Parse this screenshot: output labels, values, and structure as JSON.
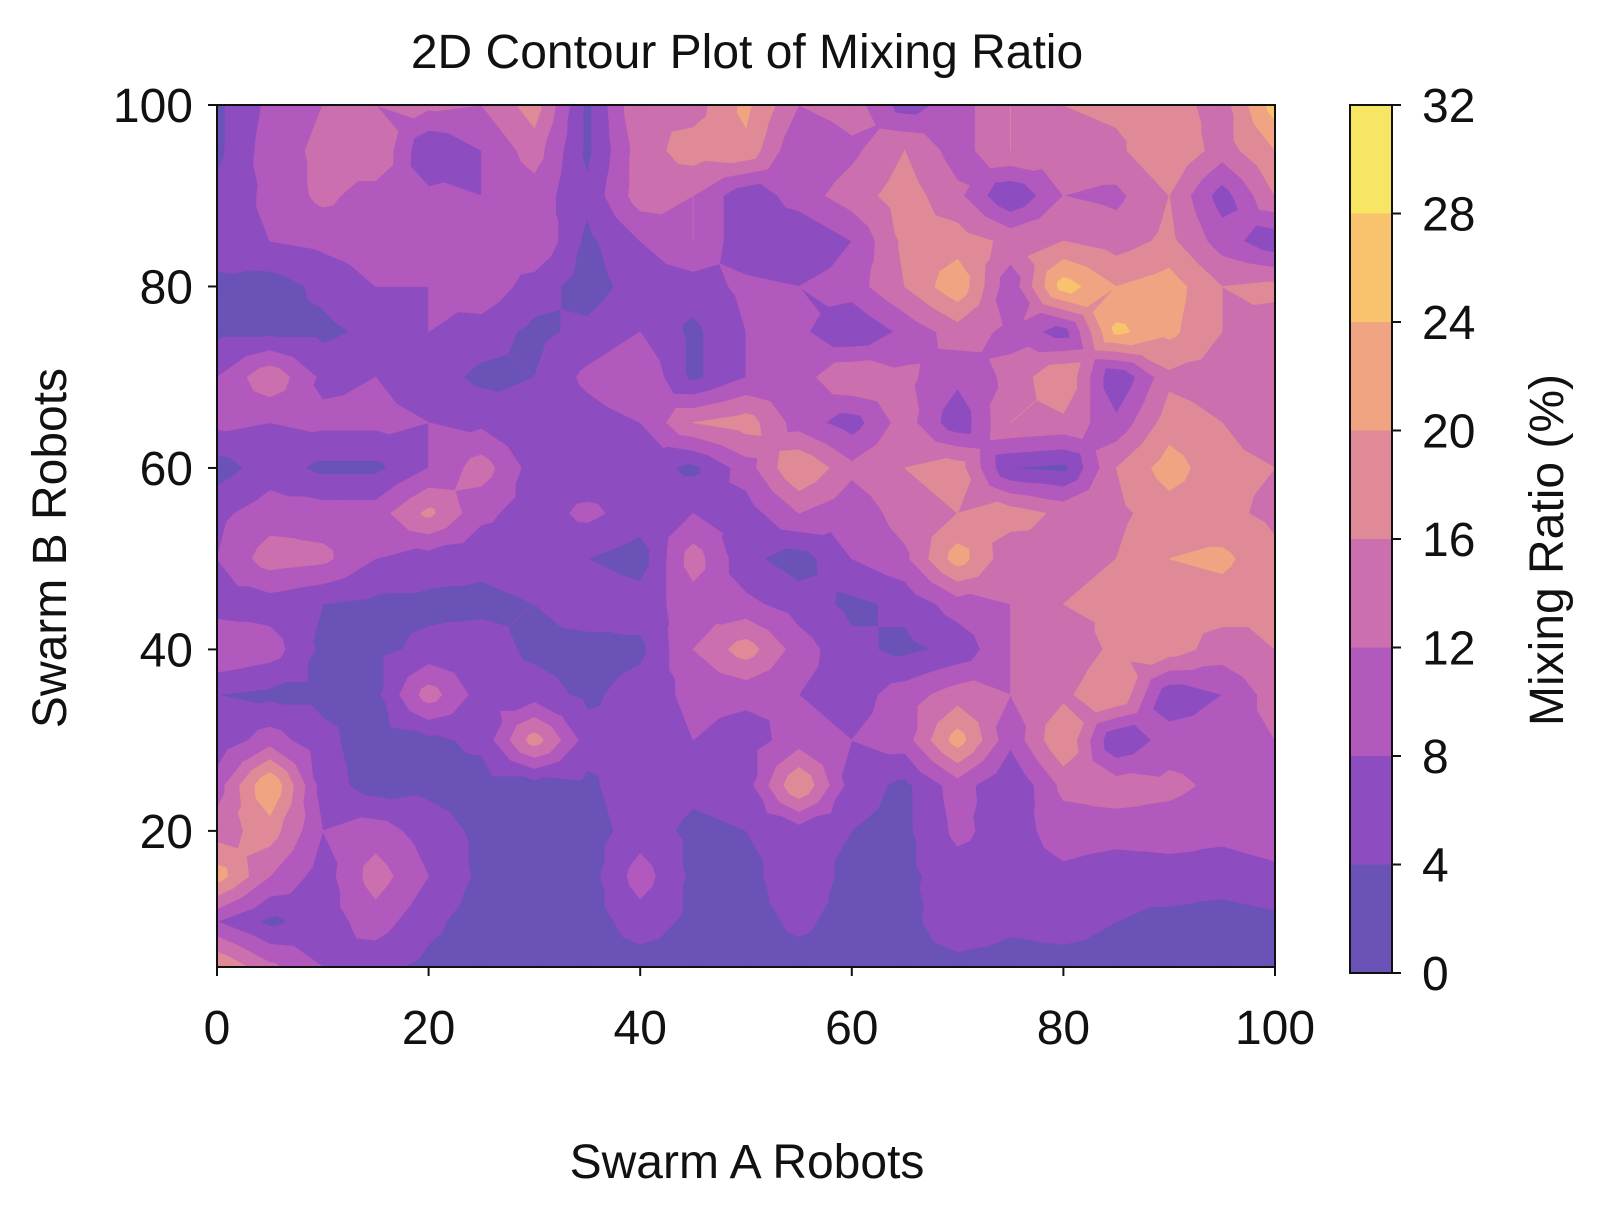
{
  "chart_data": {
    "type": "contour",
    "title": "2D Contour Plot of Mixing Ratio",
    "xlabel": "Swarm A Robots",
    "ylabel": "Swarm B Robots",
    "xlim": [
      0,
      100
    ],
    "ylim": [
      5,
      100
    ],
    "xticks": [
      0,
      20,
      40,
      60,
      80,
      100
    ],
    "yticks": [
      20,
      40,
      60,
      80,
      100
    ],
    "x": [
      0,
      5,
      10,
      15,
      20,
      25,
      30,
      35,
      40,
      45,
      50,
      55,
      60,
      65,
      70,
      75,
      80,
      85,
      90,
      95,
      100
    ],
    "y": [
      5,
      10,
      15,
      20,
      25,
      30,
      35,
      40,
      45,
      50,
      55,
      60,
      65,
      70,
      75,
      80,
      85,
      90,
      95,
      100
    ],
    "z": [
      [
        20,
        13,
        8,
        5,
        3,
        2,
        2,
        2,
        2,
        2,
        2,
        2,
        2,
        2,
        2,
        2,
        2,
        2,
        2,
        2,
        2
      ],
      [
        8,
        3,
        6,
        10,
        5,
        2,
        2,
        2,
        6,
        3,
        2,
        5,
        2,
        2,
        8,
        5,
        6,
        4,
        3,
        2,
        3
      ],
      [
        22,
        12,
        6,
        14,
        8,
        3,
        2,
        2,
        10,
        3,
        2,
        8,
        2,
        3,
        6,
        6,
        7,
        5,
        6,
        6,
        7
      ],
      [
        14,
        18,
        8,
        10,
        6,
        3,
        2,
        2,
        6,
        3,
        4,
        6,
        4,
        3,
        9,
        6,
        10,
        10,
        10,
        9,
        10
      ],
      [
        10,
        24,
        6,
        2,
        3,
        2,
        2,
        3,
        7,
        5,
        6,
        20,
        6,
        3,
        10,
        4,
        13,
        14,
        13,
        11,
        9
      ],
      [
        5,
        10,
        5,
        2,
        3,
        5,
        18,
        6,
        5,
        8,
        6,
        10,
        8,
        10,
        22,
        9,
        20,
        4,
        10,
        10,
        12
      ],
      [
        4,
        3,
        3,
        3,
        14,
        6,
        6,
        3,
        6,
        9,
        9,
        8,
        6,
        10,
        14,
        12,
        15,
        20,
        5,
        8,
        14
      ],
      [
        12,
        10,
        3,
        3,
        5,
        6,
        3,
        2,
        3,
        12,
        18,
        10,
        5,
        3,
        5,
        12,
        13,
        17,
        18,
        14,
        16
      ],
      [
        6,
        6,
        4,
        3,
        3,
        3,
        4,
        7,
        6,
        10,
        9,
        6,
        3,
        5,
        10,
        12,
        16,
        17,
        17,
        18,
        16
      ],
      [
        8,
        14,
        13,
        8,
        6,
        5,
        6,
        4,
        2,
        14,
        5,
        2,
        8,
        11,
        22,
        13,
        15,
        16,
        20,
        21,
        17
      ],
      [
        7,
        10,
        10,
        10,
        17,
        9,
        6,
        9,
        6,
        8,
        6,
        12,
        9,
        14,
        16,
        18,
        15,
        15,
        18,
        17,
        15
      ],
      [
        2,
        6,
        3,
        3,
        8,
        14,
        6,
        5,
        6,
        3,
        10,
        20,
        13,
        16,
        18,
        4,
        3,
        16,
        22,
        17,
        16
      ],
      [
        9,
        8,
        9,
        9,
        8,
        7,
        4,
        6,
        8,
        16,
        18,
        10,
        6,
        14,
        5,
        16,
        15,
        9,
        18,
        16,
        14
      ],
      [
        8,
        15,
        7,
        8,
        6,
        3,
        4,
        9,
        12,
        3,
        8,
        10,
        16,
        13,
        9,
        13,
        20,
        4,
        15,
        14,
        12
      ],
      [
        3,
        3,
        3,
        5,
        8,
        6,
        3,
        5,
        8,
        3,
        8,
        9,
        4,
        9,
        14,
        11,
        6,
        25,
        21,
        16,
        14
      ],
      [
        3,
        2,
        5,
        8,
        8,
        11,
        6,
        2,
        6,
        6,
        9,
        8,
        10,
        16,
        23,
        9,
        26,
        20,
        22,
        16,
        17
      ],
      [
        6,
        8,
        9,
        10,
        8,
        10,
        12,
        3,
        8,
        12,
        5,
        4,
        8,
        17,
        18,
        15,
        16,
        14,
        17,
        10,
        5
      ],
      [
        5,
        9,
        13,
        10,
        9,
        8,
        10,
        5,
        14,
        12,
        5,
        10,
        14,
        18,
        13,
        4,
        12,
        11,
        16,
        6,
        16
      ],
      [
        3,
        10,
        13,
        16,
        4,
        8,
        14,
        3,
        14,
        18,
        19,
        8,
        11,
        16,
        10,
        16,
        14,
        15,
        20,
        14,
        20
      ],
      [
        3,
        9,
        12,
        12,
        13,
        12,
        18,
        3,
        16,
        14,
        21,
        12,
        14,
        6,
        10,
        16,
        16,
        17,
        18,
        14,
        26
      ]
    ],
    "levels": [
      0,
      4,
      8,
      12,
      16,
      20,
      24,
      28,
      32
    ],
    "colors": [
      "#6a52b6",
      "#8e4cc1",
      "#b259bd",
      "#cc6fae",
      "#e08a98",
      "#f1a482",
      "#f8c36c",
      "#f7e564"
    ],
    "colorbar": {
      "label": "Mixing Ratio (%)",
      "ticks": [
        0,
        4,
        8,
        12,
        16,
        20,
        24,
        28,
        32
      ]
    },
    "grid": false,
    "legend": "none"
  }
}
